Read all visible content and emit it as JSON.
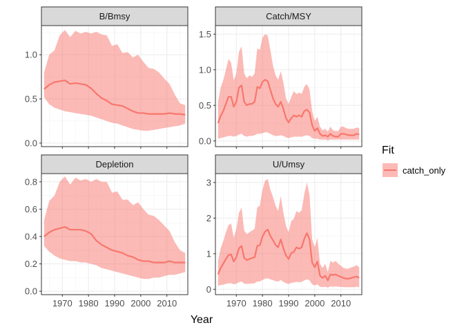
{
  "chart_data": {
    "type": "area",
    "layout": "facet-grid-2x2",
    "xlabel": "Year",
    "x_ticks": [
      1970,
      1980,
      1990,
      2000,
      2010
    ],
    "xlim": [
      1962,
      2018
    ],
    "legend": {
      "title": "Fit",
      "placement": "right",
      "entries": [
        {
          "label": "catch_only",
          "line_color": "#F8766D",
          "fill_color": "#F8766D",
          "fill_alpha": 0.5
        }
      ]
    },
    "grid": true,
    "panels": [
      {
        "title": "B/Bmsy",
        "ylim": [
          -0.04,
          1.33
        ],
        "y_ticks": [
          0.0,
          0.5,
          1.0
        ],
        "y_tick_labels": [
          "0.0",
          "0.5",
          "1.0"
        ],
        "series": [
          {
            "name": "catch_only",
            "x": [
              1963,
              1965,
              1967,
              1969,
              1971,
              1973,
              1975,
              1977,
              1979,
              1981,
              1983,
              1985,
              1987,
              1989,
              1991,
              1993,
              1995,
              1997,
              1999,
              2001,
              2003,
              2005,
              2007,
              2009,
              2011,
              2013,
              2015,
              2017
            ],
            "y": [
              0.61,
              0.66,
              0.69,
              0.7,
              0.71,
              0.67,
              0.68,
              0.67,
              0.66,
              0.62,
              0.56,
              0.51,
              0.48,
              0.44,
              0.43,
              0.42,
              0.39,
              0.36,
              0.34,
              0.34,
              0.33,
              0.33,
              0.33,
              0.33,
              0.34,
              0.33,
              0.33,
              0.32
            ],
            "lower": [
              0.52,
              0.44,
              0.4,
              0.38,
              0.36,
              0.35,
              0.34,
              0.33,
              0.32,
              0.31,
              0.29,
              0.27,
              0.25,
              0.23,
              0.22,
              0.2,
              0.18,
              0.16,
              0.15,
              0.14,
              0.14,
              0.15,
              0.16,
              0.17,
              0.18,
              0.19,
              0.2,
              0.22
            ],
            "upper": [
              0.8,
              1.0,
              1.05,
              1.22,
              1.28,
              1.2,
              1.27,
              1.24,
              1.26,
              1.24,
              1.26,
              1.23,
              1.22,
              1.1,
              1.12,
              1.02,
              1.03,
              0.97,
              1.0,
              0.92,
              0.85,
              0.84,
              0.8,
              0.73,
              0.67,
              0.55,
              0.45,
              0.43
            ]
          }
        ]
      },
      {
        "title": "Catch/MSY",
        "ylim": [
          -0.08,
          1.62
        ],
        "y_ticks": [
          0.0,
          0.5,
          1.0,
          1.5
        ],
        "y_tick_labels": [
          "0.0",
          "0.5",
          "1.0",
          "1.5"
        ],
        "series": [
          {
            "name": "catch_only",
            "x": [
              1963,
              1964,
              1965,
              1966,
              1967,
              1968,
              1969,
              1970,
              1971,
              1972,
              1973,
              1974,
              1975,
              1976,
              1977,
              1978,
              1979,
              1980,
              1981,
              1982,
              1983,
              1984,
              1985,
              1986,
              1987,
              1988,
              1989,
              1990,
              1991,
              1992,
              1993,
              1994,
              1995,
              1996,
              1997,
              1998,
              1999,
              2000,
              2001,
              2002,
              2003,
              2004,
              2005,
              2006,
              2007,
              2008,
              2009,
              2010,
              2011,
              2012,
              2013,
              2014,
              2015,
              2016,
              2017
            ],
            "y": [
              0.25,
              0.35,
              0.42,
              0.52,
              0.62,
              0.62,
              0.48,
              0.55,
              0.75,
              0.78,
              0.55,
              0.5,
              0.52,
              0.52,
              0.55,
              0.76,
              0.74,
              0.83,
              0.86,
              0.84,
              0.72,
              0.6,
              0.52,
              0.48,
              0.55,
              0.45,
              0.32,
              0.26,
              0.32,
              0.36,
              0.34,
              0.36,
              0.34,
              0.42,
              0.44,
              0.4,
              0.22,
              0.14,
              0.18,
              0.1,
              0.07,
              0.08,
              0.06,
              0.1,
              0.07,
              0.06,
              0.06,
              0.1,
              0.1,
              0.09,
              0.08,
              0.08,
              0.08,
              0.1,
              0.09
            ],
            "lower": [
              0.03,
              0.04,
              0.05,
              0.06,
              0.07,
              0.07,
              0.06,
              0.07,
              0.09,
              0.1,
              0.07,
              0.06,
              0.07,
              0.07,
              0.08,
              0.1,
              0.1,
              0.11,
              0.12,
              0.12,
              0.1,
              0.08,
              0.07,
              0.07,
              0.08,
              0.07,
              0.05,
              0.04,
              0.05,
              0.06,
              0.06,
              0.06,
              0.06,
              0.07,
              0.08,
              0.07,
              0.04,
              0.03,
              0.03,
              0.02,
              0.02,
              0.02,
              0.01,
              0.02,
              0.02,
              0.02,
              0.02,
              0.02,
              0.02,
              0.02,
              0.02,
              0.02,
              0.02,
              0.02,
              0.02
            ],
            "upper": [
              0.55,
              0.75,
              0.85,
              1.0,
              1.15,
              1.1,
              0.85,
              0.95,
              1.25,
              1.33,
              0.95,
              0.88,
              0.92,
              0.9,
              0.95,
              1.3,
              1.28,
              1.45,
              1.5,
              1.48,
              1.28,
              1.06,
              0.92,
              0.86,
              0.98,
              0.82,
              0.6,
              0.52,
              0.62,
              0.7,
              0.66,
              0.68,
              0.66,
              0.76,
              0.8,
              0.72,
              0.42,
              0.28,
              0.34,
              0.2,
              0.15,
              0.17,
              0.13,
              0.2,
              0.15,
              0.14,
              0.14,
              0.2,
              0.2,
              0.18,
              0.17,
              0.17,
              0.17,
              0.19,
              0.18
            ]
          }
        ]
      },
      {
        "title": "Depletion",
        "ylim": [
          -0.025,
          0.86
        ],
        "y_ticks": [
          0.0,
          0.2,
          0.4,
          0.6,
          0.8
        ],
        "y_tick_labels": [
          "0.0",
          "0.2",
          "0.4",
          "0.6",
          "0.8"
        ],
        "series": [
          {
            "name": "catch_only",
            "x": [
              1963,
              1965,
              1967,
              1969,
              1971,
              1973,
              1975,
              1977,
              1979,
              1981,
              1983,
              1985,
              1987,
              1989,
              1991,
              1993,
              1995,
              1997,
              1999,
              2001,
              2003,
              2005,
              2007,
              2009,
              2011,
              2013,
              2015,
              2017
            ],
            "y": [
              0.4,
              0.43,
              0.45,
              0.46,
              0.47,
              0.45,
              0.45,
              0.45,
              0.44,
              0.42,
              0.37,
              0.34,
              0.32,
              0.3,
              0.29,
              0.28,
              0.26,
              0.25,
              0.23,
              0.22,
              0.22,
              0.21,
              0.21,
              0.21,
              0.22,
              0.21,
              0.21,
              0.21
            ],
            "lower": [
              0.33,
              0.29,
              0.26,
              0.24,
              0.23,
              0.22,
              0.22,
              0.21,
              0.21,
              0.2,
              0.19,
              0.17,
              0.16,
              0.15,
              0.14,
              0.13,
              0.12,
              0.11,
              0.1,
              0.09,
              0.09,
              0.1,
              0.1,
              0.11,
              0.12,
              0.12,
              0.13,
              0.14
            ],
            "upper": [
              0.52,
              0.66,
              0.7,
              0.8,
              0.84,
              0.78,
              0.83,
              0.81,
              0.82,
              0.8,
              0.82,
              0.8,
              0.8,
              0.72,
              0.73,
              0.67,
              0.67,
              0.63,
              0.65,
              0.6,
              0.56,
              0.55,
              0.52,
              0.48,
              0.44,
              0.36,
              0.3,
              0.28
            ]
          }
        ]
      },
      {
        "title": "U/Umsy",
        "ylim": [
          -0.15,
          3.25
        ],
        "y_ticks": [
          0,
          1,
          2,
          3
        ],
        "y_tick_labels": [
          "0",
          "1",
          "2",
          "3"
        ],
        "series": [
          {
            "name": "catch_only",
            "x": [
              1963,
              1964,
              1965,
              1966,
              1967,
              1968,
              1969,
              1970,
              1971,
              1972,
              1973,
              1974,
              1975,
              1976,
              1977,
              1978,
              1979,
              1980,
              1981,
              1982,
              1983,
              1984,
              1985,
              1986,
              1987,
              1988,
              1989,
              1990,
              1991,
              1992,
              1993,
              1994,
              1995,
              1996,
              1997,
              1998,
              1999,
              2000,
              2001,
              2002,
              2003,
              2004,
              2005,
              2006,
              2007,
              2008,
              2009,
              2010,
              2011,
              2012,
              2013,
              2014,
              2015,
              2016,
              2017
            ],
            "y": [
              0.42,
              0.6,
              0.72,
              0.85,
              0.96,
              0.98,
              0.78,
              0.9,
              1.15,
              1.22,
              0.88,
              0.82,
              0.85,
              0.88,
              0.9,
              1.22,
              1.24,
              1.48,
              1.62,
              1.68,
              1.5,
              1.38,
              1.25,
              1.18,
              1.4,
              1.15,
              0.95,
              0.85,
              1.02,
              1.05,
              1.18,
              1.14,
              1.18,
              1.42,
              1.58,
              1.4,
              0.75,
              0.62,
              0.78,
              0.38,
              0.32,
              0.38,
              0.25,
              0.42,
              0.4,
              0.42,
              0.38,
              0.35,
              0.32,
              0.3,
              0.3,
              0.32,
              0.34,
              0.36,
              0.32
            ],
            "lower": [
              0.1,
              0.12,
              0.13,
              0.15,
              0.17,
              0.17,
              0.14,
              0.16,
              0.2,
              0.22,
              0.16,
              0.15,
              0.16,
              0.16,
              0.17,
              0.22,
              0.22,
              0.26,
              0.3,
              0.31,
              0.28,
              0.26,
              0.23,
              0.22,
              0.26,
              0.21,
              0.17,
              0.15,
              0.18,
              0.19,
              0.21,
              0.2,
              0.21,
              0.25,
              0.28,
              0.25,
              0.14,
              0.11,
              0.14,
              0.07,
              0.06,
              0.07,
              0.05,
              0.08,
              0.07,
              0.08,
              0.07,
              0.07,
              0.06,
              0.06,
              0.06,
              0.06,
              0.06,
              0.07,
              0.06
            ],
            "upper": [
              0.8,
              1.15,
              1.35,
              1.6,
              1.8,
              1.85,
              1.45,
              1.7,
              2.15,
              2.3,
              1.65,
              1.55,
              1.6,
              1.65,
              1.7,
              2.3,
              2.35,
              2.8,
              3.05,
              3.1,
              2.8,
              2.6,
              2.35,
              2.2,
              2.62,
              2.15,
              1.78,
              1.6,
              1.92,
              1.98,
              2.2,
              2.15,
              2.22,
              2.68,
              3.0,
              2.65,
              1.4,
              1.18,
              1.45,
              0.72,
              0.6,
              0.72,
              0.48,
              0.8,
              0.75,
              0.8,
              0.72,
              0.66,
              0.6,
              0.58,
              0.58,
              0.62,
              0.64,
              0.68,
              0.62
            ]
          }
        ]
      }
    ]
  }
}
